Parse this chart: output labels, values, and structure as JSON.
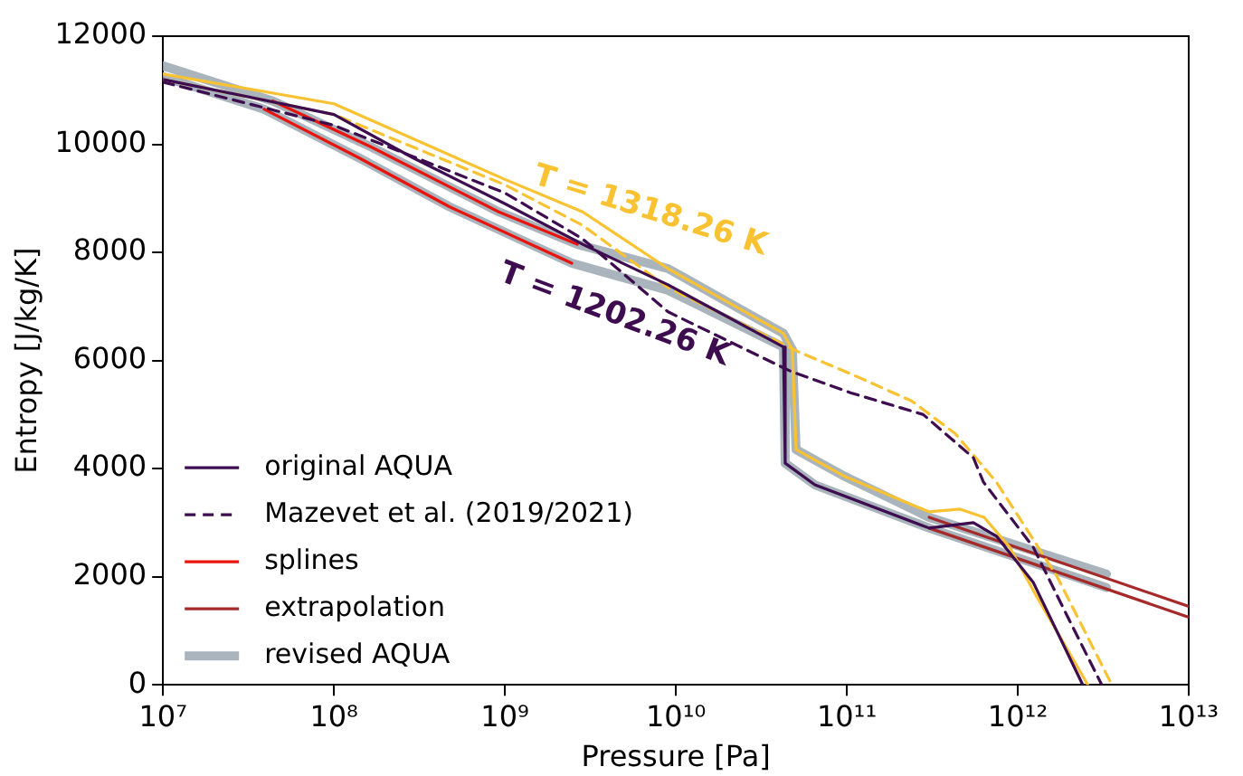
{
  "chart_data": {
    "type": "line",
    "xlabel": "Pressure [Pa]",
    "ylabel": "Entropy [J/kg/K]",
    "log": "x",
    "grid": false,
    "legend": "bottom left",
    "marker": "none",
    "xlim": [
      10000000.0,
      10000000000000.0
    ],
    "xticks": [
      {
        "value": 10000000.0,
        "label": "10⁷"
      },
      {
        "value": 100000000.0,
        "label": "10⁸"
      },
      {
        "value": 1000000000.0,
        "label": "10⁹"
      },
      {
        "value": 10000000000.0,
        "label": "10¹⁰"
      },
      {
        "value": 100000000000.0,
        "label": "10¹¹"
      },
      {
        "value": 1000000000000.0,
        "label": "10¹²"
      },
      {
        "value": 10000000000000.0,
        "label": "10¹³"
      }
    ],
    "ylim": [
      0,
      12000
    ],
    "yticks": [
      0,
      2000,
      4000,
      6000,
      8000,
      10000,
      12000
    ],
    "series": [
      {
        "name": "original AQUA",
        "color": "#3d0d4f",
        "line_style": "solid",
        "x": [
          10000000.0,
          100000000.0,
          290000000.0,
          1000000000.0,
          2850000000.0,
          9000000000.0,
          42600000000.0,
          43600000000.0,
          65000000000.0,
          303000000000.0,
          550000000000.0,
          750000000000.0,
          1230000000000.0,
          2400000000000.0
        ],
        "values": [
          11200,
          10550,
          9750,
          8900,
          8150,
          7400,
          6250,
          4100,
          3700,
          2900,
          3000,
          2750,
          1900,
          0
        ]
      },
      {
        "color": "#f9c232",
        "line_style": "solid",
        "x": [
          10000000.0,
          100000000.0,
          1000000000.0,
          2850000000.0,
          9000000000.0,
          42600000000.0,
          48000000000.0,
          50500000000.0,
          98000000000.0,
          303000000000.0,
          460000000000.0,
          635000000000.0,
          895000000000.0,
          1230000000000.0,
          2570000000000.0
        ],
        "values": [
          11300,
          10750,
          9350,
          8750,
          7700,
          6500,
          6200,
          4350,
          3850,
          3200,
          3250,
          3100,
          2550,
          1750,
          0
        ]
      },
      {
        "name": "Mazevet et al. (2019/2021)",
        "color": "#3d0d4f",
        "line_style": "dashed",
        "x": [
          10000000.0,
          100000000.0,
          1000000000.0,
          2850000000.0,
          9000000000.0,
          47000000000.0,
          106000000000.0,
          280000000000.0,
          550000000000.0,
          630000000000.0,
          1230000000000.0,
          2000000000000.0,
          3100000000000.0
        ],
        "values": [
          11150,
          10350,
          9100,
          8250,
          6900,
          5800,
          5400,
          5000,
          4200,
          3750,
          2550,
          1200,
          0
        ]
      },
      {
        "color": "#f9c232",
        "line_style": "dashed",
        "x": [
          10000000.0,
          100000000.0,
          1000000000.0,
          2850000000.0,
          9000000000.0,
          42600000000.0,
          53000000000.0,
          106000000000.0,
          240000000000.0,
          430000000000.0,
          750000000000.0,
          1700000000000.0,
          3550000000000.0
        ],
        "values": [
          11200,
          10550,
          9250,
          8500,
          7350,
          6300,
          6150,
          5750,
          5250,
          4650,
          3750,
          2000,
          0
        ]
      },
      {
        "name": "splines",
        "color": "#e8150f",
        "line_style": "solid",
        "x": [
          39000000.0,
          140000000.0,
          470000000.0,
          2460000000.0
        ],
        "values": [
          10650,
          9750,
          8850,
          7800
        ]
      },
      {
        "color": "#e8150f",
        "line_style": "solid",
        "x": [
          44000000.0,
          165000000.0,
          920000000.0,
          2650000000.0
        ],
        "values": [
          10800,
          9950,
          8750,
          8150
        ]
      },
      {
        "name": "extrapolation",
        "color": "#a52a2a",
        "line_style": "solid",
        "x": [
          303000000000.0,
          10000000000000.0
        ],
        "values": [
          2900,
          1250
        ]
      },
      {
        "color": "#a52a2a",
        "line_style": "solid",
        "x": [
          303000000000.0,
          10000000000000.0
        ],
        "values": [
          3100,
          1450
        ]
      },
      {
        "name": "revised AQUA",
        "color": "#a9b4bd",
        "line_style": "solid",
        "x": [
          10000000.0,
          39000000.0,
          140000000.0,
          470000000.0,
          2460000000.0,
          9000000000.0,
          42600000000.0,
          43600000000.0,
          65000000000.0,
          303000000000.0,
          3300000000000.0
        ],
        "values": [
          11250,
          10650,
          9750,
          8850,
          7800,
          7300,
          6250,
          4100,
          3700,
          2900,
          1800
        ]
      },
      {
        "color": "#a9b4bd",
        "line_style": "solid",
        "x": [
          10000000.0,
          44000000.0,
          165000000.0,
          920000000.0,
          2650000000.0,
          9000000000.0,
          42600000000.0,
          48000000000.0,
          50500000000.0,
          98000000000.0,
          303000000000.0,
          3300000000000.0
        ],
        "values": [
          11450,
          10800,
          9950,
          8750,
          8150,
          7700,
          6500,
          6200,
          4350,
          3850,
          3100,
          2050
        ]
      }
    ],
    "annotations": [
      "T = 1202.26 K",
      "T = 1318.26 K"
    ]
  }
}
